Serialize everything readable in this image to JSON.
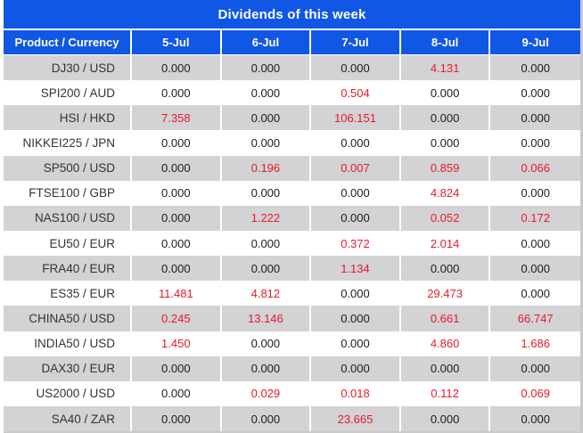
{
  "title": "Dividends of this week",
  "colors": {
    "header_blue": "#1157e6",
    "header_text": "#ffffff",
    "row_gray": "#d3d2d4",
    "row_white": "#ffffff",
    "value_black": "#1c1c1c",
    "value_red": "#e8192c",
    "outer_border": "#c9c9c9"
  },
  "table": {
    "product_header": "Product / Currency",
    "date_headers": [
      "5-Jul",
      "6-Jul",
      "7-Jul",
      "8-Jul",
      "9-Jul"
    ],
    "zero_value": "0.000",
    "rows": [
      {
        "product": "DJ30 / USD",
        "values": [
          "0.000",
          "0.000",
          "0.000",
          "4.131",
          "0.000"
        ]
      },
      {
        "product": "SPI200 / AUD",
        "values": [
          "0.000",
          "0.000",
          "0.504",
          "0.000",
          "0.000"
        ]
      },
      {
        "product": "HSI / HKD",
        "values": [
          "7.358",
          "0.000",
          "106.151",
          "0.000",
          "0.000"
        ]
      },
      {
        "product": "NIKKEI225 / JPN",
        "values": [
          "0.000",
          "0.000",
          "0.000",
          "0.000",
          "0.000"
        ]
      },
      {
        "product": "SP500 / USD",
        "values": [
          "0.000",
          "0.196",
          "0.007",
          "0.859",
          "0.066"
        ]
      },
      {
        "product": "FTSE100 / GBP",
        "values": [
          "0.000",
          "0.000",
          "0.000",
          "4.824",
          "0.000"
        ]
      },
      {
        "product": "NAS100 / USD",
        "values": [
          "0.000",
          "1.222",
          "0.000",
          "0.052",
          "0.172"
        ]
      },
      {
        "product": "EU50 / EUR",
        "values": [
          "0.000",
          "0.000",
          "0.372",
          "2.014",
          "0.000"
        ]
      },
      {
        "product": "FRA40 / EUR",
        "values": [
          "0.000",
          "0.000",
          "1.134",
          "0.000",
          "0.000"
        ]
      },
      {
        "product": "ES35 / EUR",
        "values": [
          "11.481",
          "4.812",
          "0.000",
          "29.473",
          "0.000"
        ]
      },
      {
        "product": "CHINA50 / USD",
        "values": [
          "0.245",
          "13.146",
          "0.000",
          "0.661",
          "66.747"
        ]
      },
      {
        "product": "INDIA50 / USD",
        "values": [
          "1.450",
          "0.000",
          "0.000",
          "4.860",
          "1.686"
        ]
      },
      {
        "product": "DAX30 / EUR",
        "values": [
          "0.000",
          "0.000",
          "0.000",
          "0.000",
          "0.000"
        ]
      },
      {
        "product": "US2000 / USD",
        "values": [
          "0.000",
          "0.029",
          "0.018",
          "0.112",
          "0.069"
        ]
      },
      {
        "product": "SA40 / ZAR",
        "values": [
          "0.000",
          "0.000",
          "23.665",
          "0.000",
          "0.000"
        ]
      }
    ]
  }
}
